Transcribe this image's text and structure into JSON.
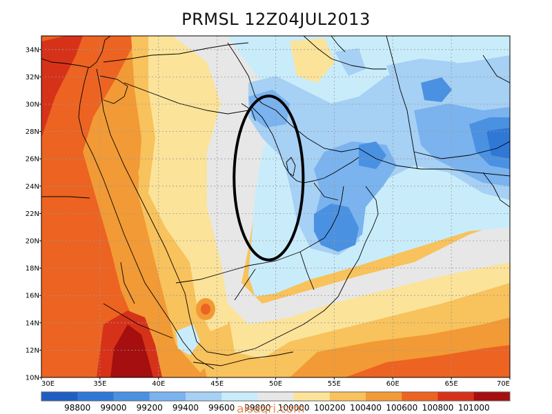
{
  "title": "PRMSL 12Z04JUL2013",
  "watermark": "alsaqri.com",
  "lat_labels": [
    "34N",
    "32N",
    "30N",
    "28N",
    "26N",
    "24N",
    "22N",
    "20N",
    "18N",
    "16N",
    "14N",
    "12N",
    "10N"
  ],
  "lon_labels": [
    "30E",
    "35E",
    "40E",
    "45E",
    "50E",
    "55E",
    "60E",
    "65E",
    "70E"
  ],
  "colorbar": {
    "labels": [
      "98800",
      "99000",
      "99200",
      "99400",
      "99600",
      "99800",
      "100000",
      "100200",
      "100400",
      "100600",
      "100800",
      "101000"
    ],
    "colors": [
      "#1f5fc4",
      "#2f78d6",
      "#4a91e2",
      "#7ab3ee",
      "#a6d0f4",
      "#c9ecfb",
      "#e7e7e7",
      "#fbe39a",
      "#f8c25c",
      "#f29a35",
      "#ec6322",
      "#d6321a",
      "#a50f0f"
    ]
  },
  "field_colors": {
    "lightgray": "#e7e7e7",
    "lightcyan": "#c9ecfb",
    "palebl": "#a6d0f4",
    "midblue": "#7ab3ee",
    "blue": "#4a91e2",
    "deepblue": "#2f78d6",
    "yellow": "#fbe39a",
    "lightorange": "#f8c25c",
    "orange": "#f29a35",
    "darkorange": "#ec6322",
    "red": "#d6321a",
    "darkred": "#a50f0f"
  },
  "annotation": {
    "type": "ellipse",
    "lon_center": 49.4,
    "lat_center": 24.6,
    "lon_radius": 2.95,
    "lat_radius": 6.0
  }
}
